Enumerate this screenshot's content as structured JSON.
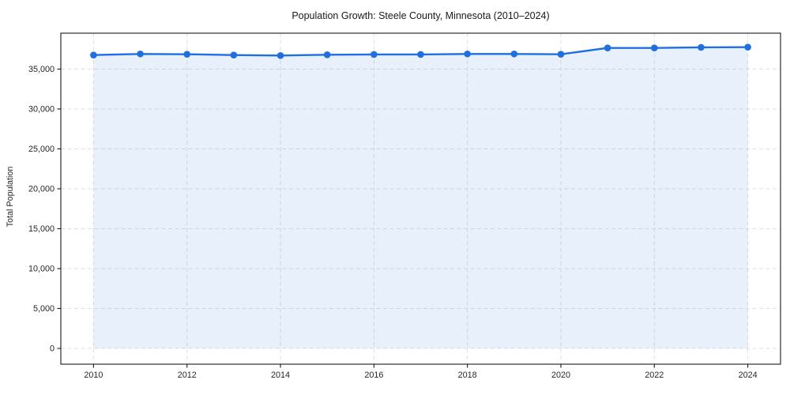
{
  "chart_data": {
    "type": "area",
    "title": "Population Growth: Steele County, Minnesota (2010–2024)",
    "xlabel": "",
    "ylabel": "Total Population",
    "x": [
      2010,
      2011,
      2012,
      2013,
      2014,
      2015,
      2016,
      2017,
      2018,
      2019,
      2020,
      2021,
      2022,
      2023,
      2024
    ],
    "values": [
      36760,
      36900,
      36860,
      36760,
      36700,
      36800,
      36830,
      36830,
      36900,
      36900,
      36860,
      37650,
      37650,
      37720,
      37750
    ],
    "series_name": "Total Population",
    "xlim": [
      2009.3,
      2024.7
    ],
    "ylim": [
      -1980,
      39500
    ],
    "xticks": [
      2010,
      2012,
      2014,
      2016,
      2018,
      2020,
      2022,
      2024
    ],
    "yticks": [
      0,
      5000,
      10000,
      15000,
      20000,
      25000,
      30000,
      35000
    ],
    "grid": true,
    "grid_style": "dashed",
    "legend": "none",
    "colors": {
      "line": "#1e6fe1",
      "marker": "#1e6fe1",
      "fill": "#1e6fe1",
      "fill_opacity": 0.1,
      "grid": "#e0e0e0",
      "spine": "#1a1a1a",
      "tick_text": "#262626"
    },
    "style": {
      "line_width": 2.4,
      "marker_radius": 4.3,
      "baseline_value": 0
    }
  }
}
